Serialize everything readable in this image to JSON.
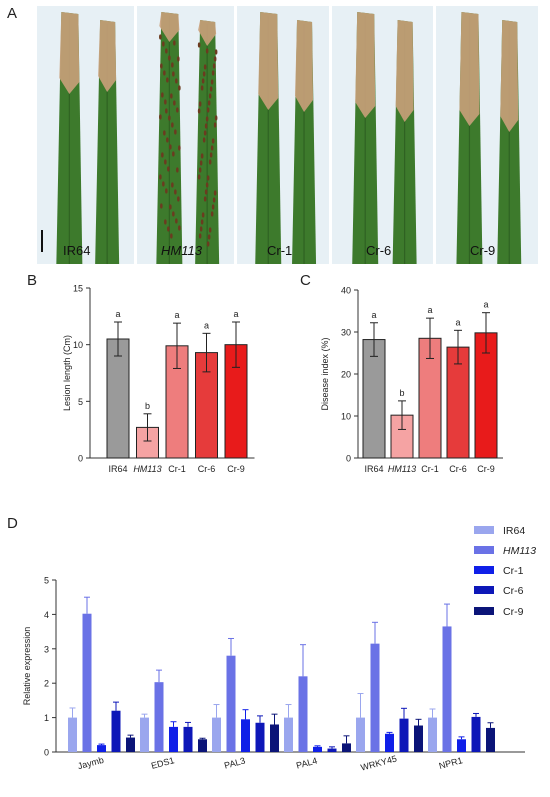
{
  "panels": {
    "a": "A",
    "b": "B",
    "c": "C",
    "d": "D"
  },
  "photos": [
    {
      "label": "IR64",
      "italic": false,
      "spots": false
    },
    {
      "label": "HM113",
      "italic": true,
      "spots": true
    },
    {
      "label": "Cr-1",
      "italic": false,
      "spots": false
    },
    {
      "label": "Cr-6",
      "italic": false,
      "spots": false
    },
    {
      "label": "Cr-9",
      "italic": false,
      "spots": false
    }
  ],
  "colors": {
    "leaf_green": "#3d7a2c",
    "leaf_dark": "#2f6222",
    "lesion": "#c9a07a",
    "photo_bg": "#e7f0f5",
    "gray_bar": "#9a9a9a",
    "pink_bar": "#f5a3a3",
    "salmon_bar": "#ee7d7d",
    "red_bar": "#e63b3b",
    "bright_red_bar": "#e81b1b"
  },
  "chart_data": [
    {
      "panel": "B",
      "type": "bar",
      "categories": [
        "IR64",
        "HM113",
        "Cr-1",
        "Cr-6",
        "Cr-9"
      ],
      "values": [
        10.5,
        2.7,
        9.9,
        9.3,
        10.0
      ],
      "errors": [
        1.5,
        1.2,
        2.0,
        1.7,
        2.0
      ],
      "letters": [
        "a",
        "b",
        "a",
        "a",
        "a"
      ],
      "colors": [
        "#9a9a9a",
        "#f5a3a3",
        "#ee7d7d",
        "#e63b3b",
        "#e81b1b"
      ],
      "ylabel": "Lesion length (Cm)",
      "ylim": [
        0,
        15
      ],
      "yticks": [
        "0",
        "5",
        "10",
        "15"
      ]
    },
    {
      "panel": "C",
      "type": "bar",
      "categories": [
        "IR64",
        "HM113",
        "Cr-1",
        "Cr-6",
        "Cr-9"
      ],
      "values": [
        28.2,
        10.2,
        28.5,
        26.4,
        29.8
      ],
      "errors": [
        4.0,
        3.4,
        4.8,
        4.0,
        4.8
      ],
      "letters": [
        "a",
        "b",
        "a",
        "a",
        "a"
      ],
      "colors": [
        "#9a9a9a",
        "#f5a3a3",
        "#ee7d7d",
        "#e63b3b",
        "#e81b1b"
      ],
      "ylabel": "Disease index (%)",
      "ylim": [
        0,
        40
      ],
      "yticks": [
        "0",
        "10",
        "20",
        "30",
        "40"
      ]
    },
    {
      "panel": "D",
      "type": "bar",
      "categories": [
        "Jaymb",
        "EDS1",
        "PAL3",
        "PAL4",
        "WRKY45",
        "NPR1"
      ],
      "series": [
        {
          "name": "IR64",
          "color": "#9aa6ee",
          "values": [
            1.0,
            1.0,
            1.0,
            1.0,
            1.0,
            1.0
          ],
          "errors": [
            0.28,
            0.1,
            0.38,
            0.38,
            0.7,
            0.25
          ]
        },
        {
          "name": "HM113",
          "color": "#6a72e6",
          "values": [
            4.02,
            2.03,
            2.8,
            2.2,
            3.15,
            3.65
          ],
          "errors": [
            0.48,
            0.35,
            0.5,
            0.92,
            0.62,
            0.65
          ]
        },
        {
          "name": "Cr-1",
          "color": "#0f1fe8",
          "values": [
            0.2,
            0.73,
            0.95,
            0.15,
            0.53,
            0.37
          ],
          "errors": [
            0.03,
            0.15,
            0.28,
            0.03,
            0.04,
            0.07
          ]
        },
        {
          "name": "Cr-6",
          "color": "#0d17b8",
          "values": [
            1.2,
            0.73,
            0.85,
            0.1,
            0.97,
            1.02
          ],
          "errors": [
            0.25,
            0.13,
            0.2,
            0.05,
            0.3,
            0.1
          ]
        },
        {
          "name": "Cr-9",
          "color": "#0b1478",
          "values": [
            0.42,
            0.37,
            0.8,
            0.25,
            0.77,
            0.7
          ],
          "errors": [
            0.07,
            0.03,
            0.3,
            0.22,
            0.18,
            0.15
          ]
        }
      ],
      "legend_italic": [
        false,
        true,
        false,
        false,
        false
      ],
      "ylabel": "Relative expression",
      "ylim": [
        0,
        5
      ],
      "yticks": [
        "0",
        "1",
        "2",
        "3",
        "4",
        "5"
      ],
      "legend": "top-right"
    }
  ]
}
